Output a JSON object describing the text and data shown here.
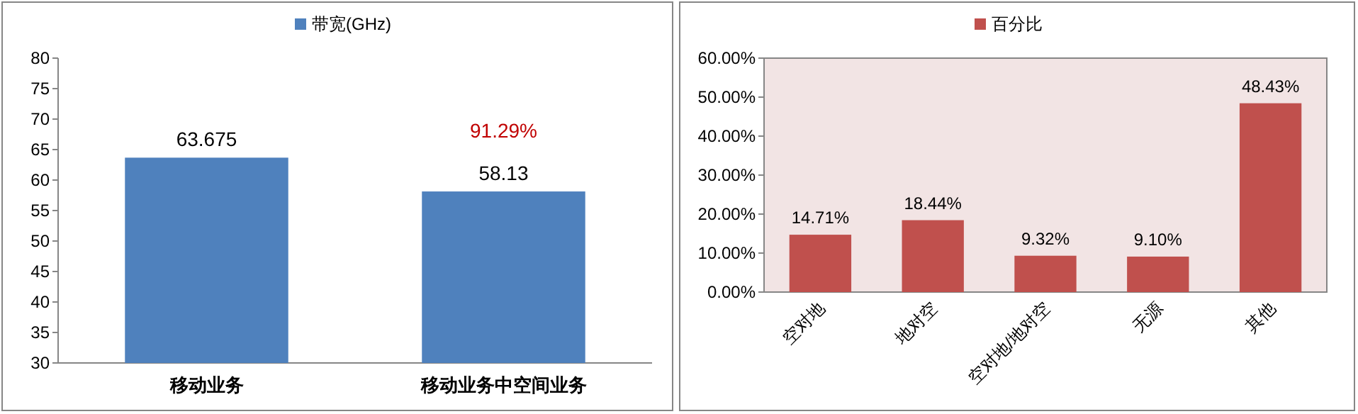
{
  "chart_data": [
    {
      "type": "bar",
      "categories": [
        "移动业务",
        "移动业务中空间业务"
      ],
      "series": [
        {
          "name": "带宽(GHz)",
          "color": "#4f81bd",
          "values": [
            63.675,
            58.13
          ]
        }
      ],
      "ylim": [
        30,
        80
      ],
      "yticks": [
        30,
        35,
        40,
        45,
        50,
        55,
        60,
        65,
        70,
        75,
        80
      ],
      "grid": false,
      "legend": "top",
      "data_labels": true,
      "annotations": [
        "91.29%"
      ]
    },
    {
      "type": "bar",
      "categories": [
        "空对地",
        "地对空",
        "空对地/地对空",
        "无源",
        "其他"
      ],
      "series": [
        {
          "name": "百分比",
          "color": "#c0504d",
          "values": [
            14.71,
            18.44,
            9.32,
            9.1,
            48.43
          ],
          "value_labels": [
            "14.71%",
            "18.44%",
            "9.32%",
            "9.10%",
            "48.43%"
          ]
        }
      ],
      "ylim": [
        0,
        60
      ],
      "yticks": [
        {
          "value": 0,
          "label": "0.00%"
        },
        {
          "value": 10,
          "label": "10.00%"
        },
        {
          "value": 20,
          "label": "20.00%"
        },
        {
          "value": 30,
          "label": "30.00%"
        },
        {
          "value": 40,
          "label": "40.00%"
        },
        {
          "value": 50,
          "label": "50.00%"
        },
        {
          "value": 60,
          "label": "60.00%"
        }
      ],
      "grid": false,
      "legend": "top"
    }
  ]
}
